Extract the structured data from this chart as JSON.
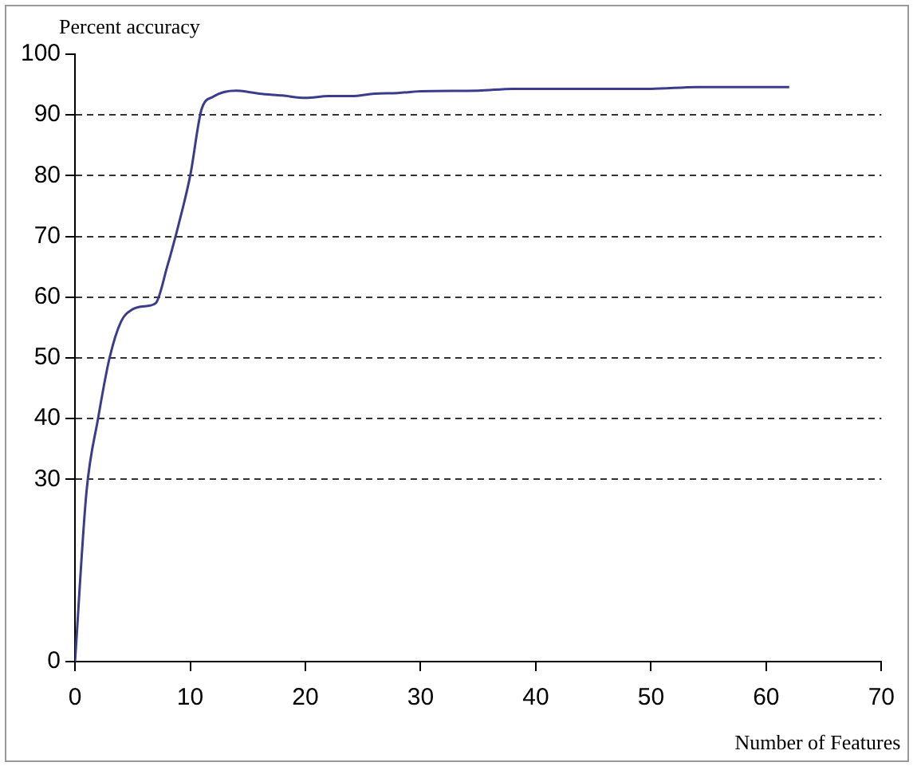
{
  "chart_data": {
    "type": "line",
    "xlabel": "Number of Features",
    "ylabel": "Percent accuracy",
    "x": [
      0,
      1,
      2,
      3,
      4,
      5,
      6,
      7,
      8,
      9,
      10,
      11,
      12,
      13,
      14,
      15,
      16,
      18,
      20,
      22,
      24,
      26,
      28,
      30,
      35,
      38,
      45,
      50,
      54,
      62
    ],
    "series": [
      {
        "color": "#3c3c8c",
        "values": [
          0,
          28,
          40,
          50,
          56,
          58,
          58.5,
          59,
          65,
          72,
          80,
          91,
          93,
          93.8,
          94,
          93.8,
          93.5,
          93.2,
          92.8,
          93.1,
          93.1,
          93.5,
          93.6,
          93.9,
          94,
          94.3,
          94.3,
          94.3,
          94.6,
          94.6
        ]
      }
    ],
    "xlim": [
      0,
      70
    ],
    "xticks": [
      0,
      10,
      20,
      30,
      40,
      50,
      60,
      70
    ],
    "ylim": [
      0,
      100
    ],
    "yticks": [
      0,
      30,
      40,
      50,
      60,
      70,
      80,
      90,
      100
    ],
    "grid": "y",
    "legend": false,
    "marker": "none",
    "line_style": "solid"
  }
}
